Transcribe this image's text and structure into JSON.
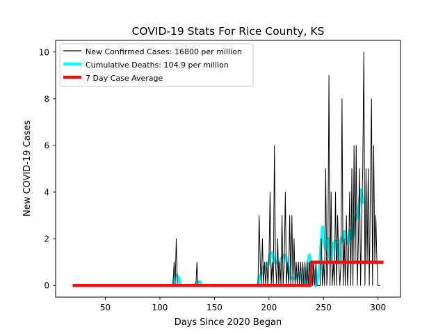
{
  "chart_data": {
    "type": "line",
    "title": "COVID-19 Stats For Rice County, KS",
    "xlabel": "Days Since 2020 Began",
    "ylabel": "New COVID-19 Cases",
    "xlim": [
      4.4,
      320.6
    ],
    "ylim": [
      -0.5,
      10.5
    ],
    "xticks": [
      50,
      100,
      150,
      200,
      250,
      300
    ],
    "yticks": [
      0,
      2,
      4,
      6,
      8,
      10
    ],
    "grid": false,
    "legend_position": "top-left",
    "series": [
      {
        "name": "New Confirmed Cases: 16800 per million",
        "color": "#000000",
        "style": "thin",
        "points": [
          [
            20,
            0
          ],
          [
            112,
            0
          ],
          [
            113,
            1
          ],
          [
            114,
            0
          ],
          [
            115,
            2
          ],
          [
            116,
            0
          ],
          [
            133,
            0
          ],
          [
            134,
            1
          ],
          [
            135,
            0
          ],
          [
            190,
            0
          ],
          [
            191,
            3
          ],
          [
            192,
            1
          ],
          [
            193,
            0
          ],
          [
            194,
            2
          ],
          [
            195,
            0
          ],
          [
            196,
            1
          ],
          [
            197,
            0
          ],
          [
            198,
            1
          ],
          [
            199,
            0
          ],
          [
            200,
            1
          ],
          [
            201,
            4
          ],
          [
            202,
            0
          ],
          [
            203,
            1
          ],
          [
            204,
            0
          ],
          [
            205,
            6
          ],
          [
            206,
            1
          ],
          [
            207,
            0
          ],
          [
            208,
            2
          ],
          [
            209,
            0
          ],
          [
            210,
            1
          ],
          [
            211,
            0
          ],
          [
            212,
            3
          ],
          [
            213,
            0
          ],
          [
            214,
            1
          ],
          [
            215,
            4
          ],
          [
            216,
            0
          ],
          [
            217,
            1
          ],
          [
            218,
            0
          ],
          [
            219,
            3
          ],
          [
            220,
            0
          ],
          [
            221,
            3
          ],
          [
            222,
            0
          ],
          [
            223,
            2
          ],
          [
            224,
            0
          ],
          [
            225,
            1
          ],
          [
            226,
            0
          ],
          [
            227,
            1
          ],
          [
            228,
            0
          ],
          [
            229,
            1
          ],
          [
            230,
            0
          ],
          [
            231,
            1
          ],
          [
            232,
            0
          ],
          [
            233,
            1
          ],
          [
            234,
            0
          ],
          [
            235,
            1
          ],
          [
            236,
            0
          ],
          [
            237,
            1
          ],
          [
            238,
            0
          ],
          [
            239,
            1
          ],
          [
            240,
            0
          ],
          [
            241,
            1
          ],
          [
            242,
            0
          ],
          [
            243,
            1
          ],
          [
            244,
            0
          ],
          [
            247,
            0
          ],
          [
            248,
            2
          ],
          [
            249,
            0
          ],
          [
            250,
            1
          ],
          [
            251,
            0
          ],
          [
            252,
            5
          ],
          [
            253,
            0
          ],
          [
            254,
            1
          ],
          [
            255,
            9
          ],
          [
            256,
            0
          ],
          [
            257,
            4
          ],
          [
            258,
            0
          ],
          [
            259,
            1
          ],
          [
            260,
            0
          ],
          [
            261,
            4
          ],
          [
            262,
            0
          ],
          [
            263,
            3
          ],
          [
            264,
            1
          ],
          [
            265,
            0
          ],
          [
            266,
            1
          ],
          [
            267,
            8
          ],
          [
            268,
            0
          ],
          [
            269,
            2
          ],
          [
            270,
            0
          ],
          [
            271,
            3
          ],
          [
            272,
            0
          ],
          [
            273,
            1
          ],
          [
            274,
            4
          ],
          [
            275,
            0
          ],
          [
            276,
            5
          ],
          [
            277,
            0
          ],
          [
            278,
            6
          ],
          [
            279,
            1
          ],
          [
            280,
            6
          ],
          [
            281,
            0
          ],
          [
            282,
            2
          ],
          [
            283,
            5
          ],
          [
            284,
            0
          ],
          [
            285,
            3
          ],
          [
            286,
            5
          ],
          [
            287,
            10
          ],
          [
            288,
            0
          ],
          [
            289,
            5
          ],
          [
            290,
            1
          ],
          [
            291,
            5
          ],
          [
            292,
            0
          ],
          [
            293,
            4
          ],
          [
            294,
            8
          ],
          [
            295,
            0
          ],
          [
            296,
            6
          ],
          [
            297,
            1
          ],
          [
            298,
            3
          ],
          [
            299,
            1
          ],
          [
            300,
            0
          ],
          [
            302,
            0
          ]
        ]
      },
      {
        "name": "Cumulative Deaths: 104.9 per million",
        "color": "#00ffff",
        "style": "thick",
        "segments": [
          [
            [
              112,
              0
            ],
            [
              113,
              0.3
            ],
            [
              114,
              0.45
            ],
            [
              115,
              0.45
            ],
            [
              116,
              0.4
            ],
            [
              117,
              0.35
            ],
            [
              118,
              0.15
            ],
            [
              119,
              0
            ]
          ],
          [
            [
              133,
              0
            ],
            [
              134,
              0.15
            ],
            [
              135,
              0.15
            ],
            [
              136,
              0.15
            ],
            [
              137,
              0.15
            ],
            [
              138,
              0
            ]
          ],
          [
            [
              190,
              0
            ],
            [
              191,
              0.3
            ],
            [
              192,
              0.4
            ],
            [
              193,
              0.5
            ],
            [
              194,
              0.75
            ],
            [
              195,
              0.8
            ],
            [
              196,
              0.75
            ],
            [
              197,
              0.8
            ],
            [
              198,
              0.95
            ],
            [
              199,
              0.9
            ],
            [
              200,
              0.95
            ],
            [
              201,
              1.35
            ],
            [
              202,
              1.4
            ],
            [
              203,
              1.4
            ],
            [
              204,
              1.2
            ],
            [
              205,
              1.0
            ],
            [
              206,
              1.05
            ],
            [
              207,
              1.0
            ],
            [
              208,
              0.9
            ],
            [
              209,
              0.8
            ],
            [
              210,
              0.95
            ],
            [
              211,
              1.1
            ],
            [
              212,
              1.2
            ],
            [
              213,
              1.25
            ],
            [
              214,
              1.3
            ],
            [
              215,
              1.25
            ],
            [
              216,
              1.1
            ],
            [
              217,
              0.95
            ],
            [
              218,
              0.7
            ],
            [
              219,
              0.45
            ],
            [
              220,
              0.3
            ],
            [
              221,
              0.3
            ],
            [
              222,
              0.3
            ],
            [
              223,
              0.3
            ],
            [
              224,
              0.3
            ],
            [
              225,
              0.4
            ],
            [
              226,
              0.4
            ],
            [
              227,
              0.5
            ],
            [
              228,
              0.5
            ],
            [
              229,
              0.45
            ],
            [
              230,
              0.3
            ],
            [
              231,
              0.2
            ],
            [
              232,
              0.05
            ],
            [
              233,
              0
            ],
            [
              234,
              0.1
            ],
            [
              235,
              0.4
            ],
            [
              236,
              1.0
            ],
            [
              237,
              1.3
            ],
            [
              238,
              1.1
            ],
            [
              239,
              0.75
            ],
            [
              240,
              0.8
            ],
            [
              241,
              0.5
            ],
            [
              242,
              0.15
            ],
            [
              243,
              0
            ],
            [
              244,
              0.2
            ],
            [
              245,
              0.3
            ],
            [
              246,
              0.7
            ],
            [
              247,
              1.2
            ],
            [
              248,
              1.9
            ],
            [
              249,
              2.5
            ],
            [
              250,
              2.3
            ],
            [
              251,
              1.8
            ],
            [
              252,
              1.55
            ],
            [
              253,
              1.9
            ],
            [
              254,
              2.0
            ],
            [
              255,
              1.5
            ],
            [
              256,
              1.1
            ],
            [
              257,
              1.2
            ],
            [
              258,
              1.6
            ],
            [
              259,
              1.8
            ],
            [
              260,
              1.8
            ],
            [
              261,
              1.9
            ],
            [
              262,
              1.7
            ],
            [
              263,
              1.2
            ],
            [
              264,
              1.1
            ],
            [
              265,
              1.7
            ],
            [
              266,
              2.0
            ],
            [
              267,
              1.9
            ],
            [
              268,
              2.0
            ],
            [
              269,
              2.3
            ],
            [
              270,
              2.3
            ],
            [
              271,
              2.0
            ],
            [
              272,
              1.8
            ],
            [
              273,
              2.0
            ],
            [
              274,
              2.35
            ],
            [
              275,
              2.2
            ],
            [
              276,
              2.0
            ],
            [
              277,
              2.2
            ],
            [
              278,
              2.6
            ],
            [
              279,
              2.9
            ],
            [
              280,
              3.0
            ],
            [
              281,
              2.9
            ],
            [
              282,
              3.2
            ],
            [
              283,
              3.6
            ],
            [
              284,
              4.1
            ],
            [
              285,
              3.9
            ],
            [
              286,
              3.5
            ]
          ]
        ]
      },
      {
        "name": "7 Day Case Average",
        "color": "#ee1111",
        "style": "thick",
        "points": [
          [
            20,
            0
          ],
          [
            238,
            0
          ],
          [
            239,
            1
          ],
          [
            305,
            1
          ]
        ]
      }
    ]
  }
}
